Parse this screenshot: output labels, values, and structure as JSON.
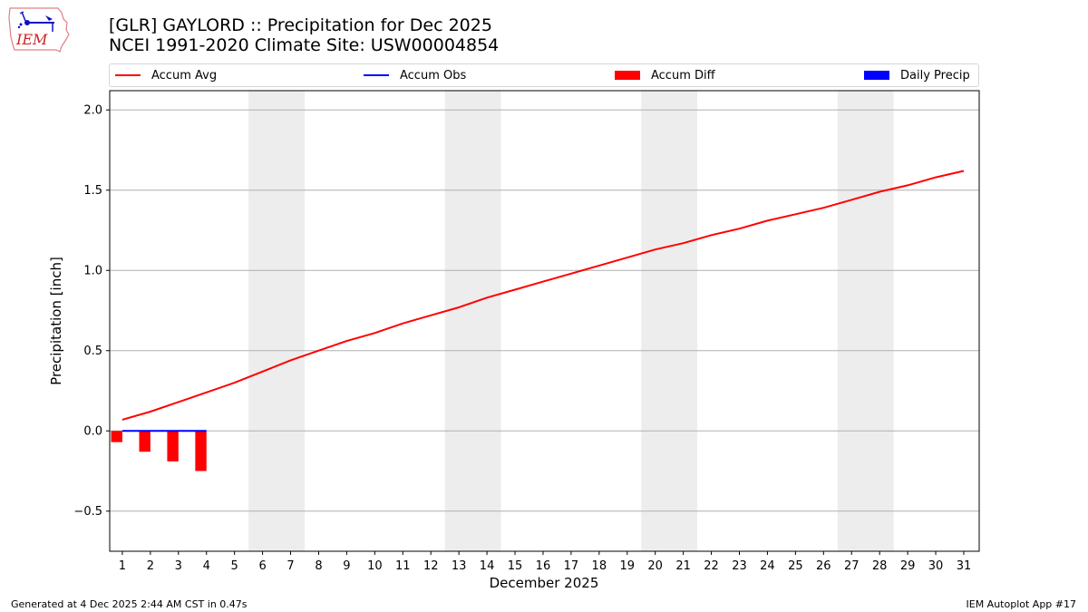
{
  "header": {
    "title_line1": "[GLR] GAYLORD :: Precipitation for Dec 2025",
    "title_line2": "NCEI 1991-2020 Climate Site: USW00004854",
    "logo_text": "IEM"
  },
  "legend": {
    "items": [
      {
        "label": "Accum Avg",
        "type": "line",
        "color": "#ff0000"
      },
      {
        "label": "Accum Obs",
        "type": "line",
        "color": "#0000ff"
      },
      {
        "label": "Accum Diff",
        "type": "patch",
        "color": "#ff0000"
      },
      {
        "label": "Daily Precip",
        "type": "patch",
        "color": "#0000ff"
      }
    ]
  },
  "footer": {
    "generated": "Generated at 4 Dec 2025 2:44 AM CST in 0.47s",
    "app": "IEM Autoplot App #17"
  },
  "chart_data": {
    "type": "line",
    "title": "[GLR] GAYLORD :: Precipitation for Dec 2025 / NCEI 1991-2020 Climate Site: USW00004854",
    "xlabel": "December 2025",
    "ylabel": "Precipitation [inch]",
    "ylim": [
      -0.75,
      2.12
    ],
    "xlim": [
      0.55,
      31.55
    ],
    "yticks": [
      -0.5,
      0.0,
      0.5,
      1.0,
      1.5,
      2.0
    ],
    "ytick_labels": [
      "−0.5",
      "0.0",
      "0.5",
      "1.0",
      "1.5",
      "2.0"
    ],
    "x": [
      1,
      2,
      3,
      4,
      5,
      6,
      7,
      8,
      9,
      10,
      11,
      12,
      13,
      14,
      15,
      16,
      17,
      18,
      19,
      20,
      21,
      22,
      23,
      24,
      25,
      26,
      27,
      28,
      29,
      30,
      31
    ],
    "grid": "horizontal",
    "legend_position": "top (above axes, 4 columns)",
    "weekend_shading": [
      [
        5.5,
        7.5
      ],
      [
        12.5,
        14.5
      ],
      [
        19.5,
        21.5
      ],
      [
        26.5,
        28.5
      ]
    ],
    "series": [
      {
        "name": "Accum Avg",
        "type": "line",
        "color": "#ff0000",
        "x": [
          1,
          2,
          3,
          4,
          5,
          6,
          7,
          8,
          9,
          10,
          11,
          12,
          13,
          14,
          15,
          16,
          17,
          18,
          19,
          20,
          21,
          22,
          23,
          24,
          25,
          26,
          27,
          28,
          29,
          30,
          31
        ],
        "values": [
          0.07,
          0.12,
          0.18,
          0.24,
          0.3,
          0.37,
          0.44,
          0.5,
          0.56,
          0.61,
          0.67,
          0.72,
          0.77,
          0.83,
          0.88,
          0.93,
          0.98,
          1.03,
          1.08,
          1.13,
          1.17,
          1.22,
          1.26,
          1.31,
          1.35,
          1.39,
          1.44,
          1.49,
          1.53,
          1.58,
          1.62
        ]
      },
      {
        "name": "Accum Obs",
        "type": "line",
        "color": "#0000ff",
        "x": [
          1,
          2,
          3,
          4
        ],
        "values": [
          0.0,
          0.0,
          0.0,
          0.0
        ]
      },
      {
        "name": "Accum Diff",
        "type": "bar",
        "color": "#ff0000",
        "x": [
          1,
          2,
          3,
          4
        ],
        "values": [
          -0.07,
          -0.13,
          -0.19,
          -0.25
        ]
      },
      {
        "name": "Daily Precip",
        "type": "bar",
        "color": "#0000ff",
        "x": [
          1,
          2,
          3,
          4
        ],
        "values": [
          0.0,
          0.0,
          0.0,
          0.0
        ]
      }
    ]
  }
}
